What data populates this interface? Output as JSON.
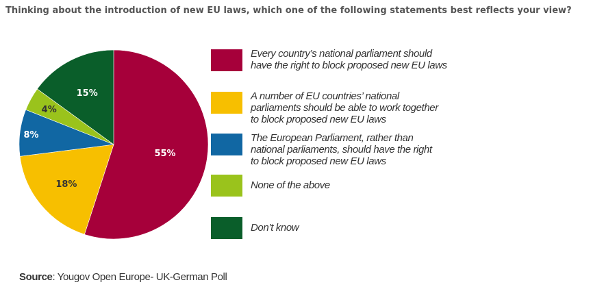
{
  "question": "Thinking about the introduction of new EU laws, which one of the following statements best reflects your view?",
  "chart_data": {
    "type": "pie",
    "slices": [
      {
        "name": "Every country’s national parliament should\nhave the right to block proposed new EU laws",
        "value": 55,
        "label": "55%",
        "color": "#a6003a",
        "label_color": "#ffffff"
      },
      {
        "name": "A number of EU countries’ national\nparliaments should be able to work together\nto block proposed new EU laws",
        "value": 18,
        "label": "18%",
        "color": "#f7bf00",
        "label_color": "#333333"
      },
      {
        "name": "The European Parliament, rather than\nnational parliaments, should have the right\nto block proposed new EU laws",
        "value": 8,
        "label": "8%",
        "color": "#1167a3",
        "label_color": "#ffffff"
      },
      {
        "name": "None of the above",
        "value": 4,
        "label": "4%",
        "color": "#9ac31c",
        "label_color": "#333333"
      },
      {
        "name": "Don’t know",
        "value": 15,
        "label": "15%",
        "color": "#0a5e2a",
        "label_color": "#ffffff"
      }
    ]
  },
  "source": {
    "label": "Source",
    "text": ": Yougov Open Europe- UK-German Poll"
  }
}
